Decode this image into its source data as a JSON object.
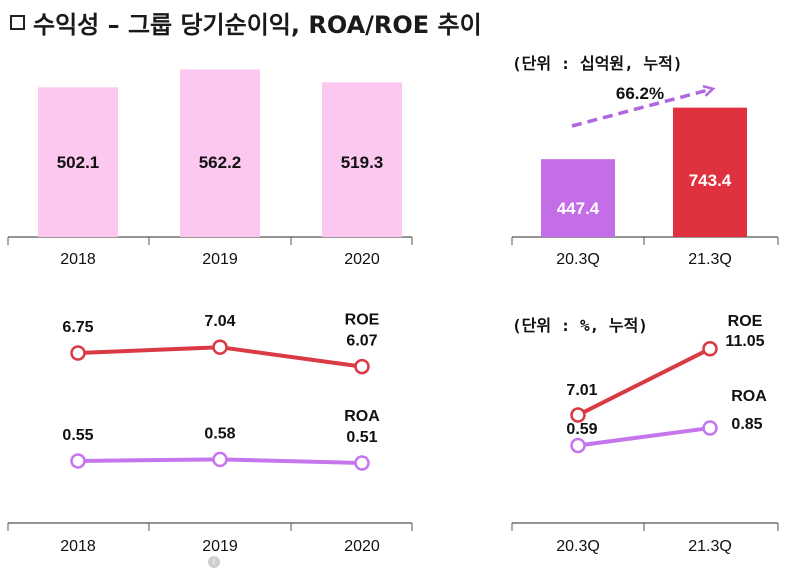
{
  "title": "수익성 – 그룹 당기순이익, ROA/ROE 추이",
  "icons": {
    "bullet": "checkbox-icon",
    "info": "info-icon"
  },
  "units": {
    "net_income": "(단위 : 십억원, 누적)",
    "ratio": "(단위 : %, 누적)"
  },
  "colors": {
    "annual_bar": "#fcc8f0",
    "bar_203q": "#c36ee6",
    "bar_213q": "#e0313e",
    "roe_line": "#d93a43",
    "roa_line": "#c676ec",
    "growth_arrow": "#b066e0"
  },
  "growth_label": "66.2%",
  "chart_data": [
    {
      "type": "bar",
      "categories": [
        "2018",
        "2019",
        "2020"
      ],
      "values": [
        502.1,
        562.2,
        519.3
      ],
      "value_labels": [
        "502.1",
        "562.2",
        "519.3"
      ]
    },
    {
      "type": "bar",
      "categories": [
        "20.3Q",
        "21.3Q"
      ],
      "values": [
        447.4,
        743.4
      ],
      "value_labels": [
        "447.4",
        "743.4"
      ]
    },
    {
      "type": "line",
      "categories": [
        "2018",
        "2019",
        "2020"
      ],
      "series": [
        {
          "name": "ROE",
          "values": [
            6.75,
            7.04,
            6.07
          ],
          "value_labels": [
            "6.75",
            "7.04",
            "6.07"
          ]
        },
        {
          "name": "ROA",
          "values": [
            0.55,
            0.58,
            0.51
          ],
          "value_labels": [
            "0.55",
            "0.58",
            "0.51"
          ]
        }
      ]
    },
    {
      "type": "line",
      "categories": [
        "20.3Q",
        "21.3Q"
      ],
      "series": [
        {
          "name": "ROE",
          "values": [
            7.01,
            11.05
          ],
          "value_labels": [
            "7.01",
            "11.05"
          ]
        },
        {
          "name": "ROA",
          "values": [
            0.59,
            0.85
          ],
          "value_labels": [
            "0.59",
            "0.85"
          ]
        }
      ]
    }
  ]
}
